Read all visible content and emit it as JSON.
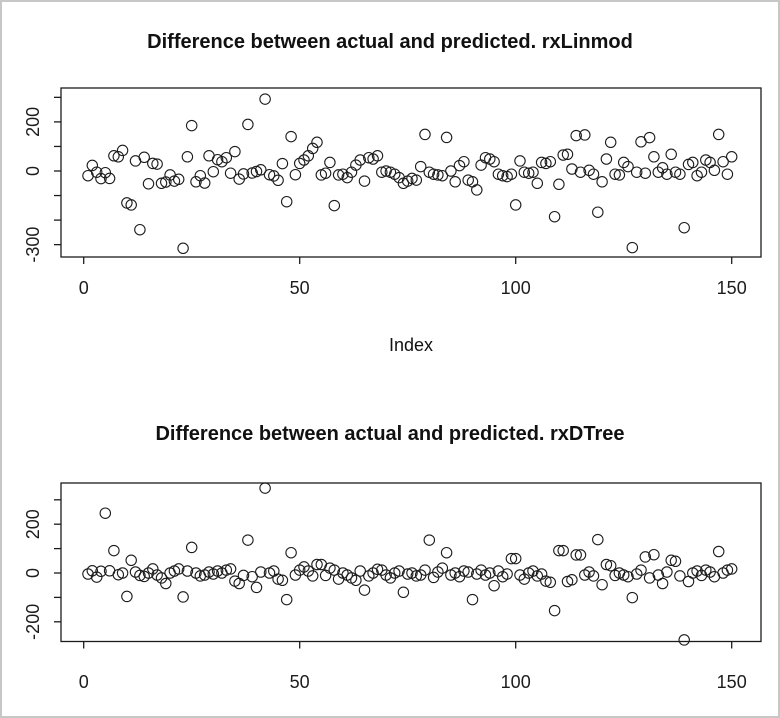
{
  "window": {
    "background": "#ffffff",
    "frame_border_color": "#c7c7c7",
    "ink_color": "#1c1c1c"
  },
  "chart_data": [
    {
      "type": "scatter",
      "title": "Difference between actual and predicted. rxLinmod",
      "xlabel": "Index",
      "ylabel": "",
      "marker": "open-circle",
      "grid": false,
      "x_description": "observation index 1..150, one point per observation",
      "x_ticks": [
        0,
        50,
        100,
        150
      ],
      "y_ticks": [
        300,
        200,
        100,
        0,
        -100,
        -200,
        -300
      ],
      "y_labeled_ticks": [
        200,
        0,
        -300
      ],
      "xlim": [
        -5,
        157
      ],
      "ylim": [
        -349,
        338
      ],
      "values": [
        -19,
        23,
        -5,
        -31,
        -7,
        -30,
        62,
        58,
        84,
        -130,
        -138,
        41,
        -239,
        56,
        -52,
        31,
        28,
        -50,
        -45,
        -16,
        -41,
        -34,
        -315,
        58,
        185,
        -44,
        -19,
        -49,
        62,
        -3,
        46,
        38,
        54,
        -9,
        79,
        -33,
        -12,
        190,
        -8,
        -2,
        5,
        293,
        -15,
        -20,
        -38,
        30,
        -125,
        140,
        -15,
        31,
        45,
        62,
        92,
        117,
        -16,
        -9,
        35,
        -141,
        -16,
        -13,
        -27,
        -5,
        24,
        45,
        -41,
        54,
        49,
        62,
        -5,
        0,
        -5,
        -13,
        -27,
        -50,
        -41,
        -30,
        -37,
        18,
        149,
        -5,
        -13,
        -16,
        -19,
        137,
        0,
        -44,
        22,
        38,
        -37,
        -44,
        -77,
        24,
        54,
        49,
        38,
        -13,
        -19,
        -23,
        -13,
        -138,
        41,
        -5,
        -9,
        -5,
        -50,
        35,
        31,
        38,
        -186,
        -54,
        65,
        68,
        8,
        144,
        -5,
        147,
        3,
        -13,
        -168,
        -44,
        49,
        117,
        -13,
        -16,
        35,
        18,
        -312,
        -5,
        119,
        -9,
        136,
        58,
        -5,
        13,
        -13,
        68,
        -5,
        -13,
        -231,
        27,
        35,
        -19,
        -5,
        45,
        35,
        3,
        149,
        38,
        -13,
        58
      ]
    },
    {
      "type": "scatter",
      "title": "Difference between actual and predicted. rxDTree",
      "xlabel": "",
      "ylabel": "",
      "marker": "open-circle",
      "grid": false,
      "x_description": "observation index 1..150, one point per observation",
      "x_ticks": [
        0,
        50,
        100,
        150
      ],
      "y_ticks": [
        300,
        200,
        100,
        0,
        -100,
        -200
      ],
      "y_labeled_ticks": [
        200,
        0,
        -200
      ],
      "xlim": [
        -5,
        157
      ],
      "ylim": [
        -280,
        369
      ],
      "values": [
        -4,
        9,
        -17,
        7,
        245,
        9,
        92,
        -7,
        0,
        -96,
        52,
        4,
        -10,
        -14,
        0,
        17,
        -8,
        -20,
        -43,
        0,
        8,
        17,
        -98,
        8,
        105,
        0,
        -12,
        -8,
        4,
        -4,
        8,
        0,
        12,
        17,
        -33,
        -43,
        -10,
        135,
        -15,
        -59,
        4,
        348,
        0,
        8,
        -25,
        -30,
        -109,
        83,
        -8,
        12,
        25,
        8,
        -12,
        35,
        35,
        -10,
        20,
        12,
        -25,
        0,
        -8,
        -20,
        -30,
        8,
        -70,
        -12,
        0,
        15,
        12,
        -8,
        -20,
        0,
        8,
        -79,
        -4,
        0,
        -12,
        -8,
        12,
        135,
        -18,
        4,
        20,
        83,
        -8,
        0,
        -15,
        8,
        4,
        -109,
        -4,
        12,
        -8,
        0,
        -52,
        8,
        -15,
        -4,
        59,
        59,
        -8,
        -25,
        0,
        8,
        -12,
        -4,
        -33,
        -38,
        -154,
        92,
        92,
        -35,
        -28,
        74,
        74,
        -8,
        4,
        -12,
        137,
        -48,
        35,
        30,
        -10,
        0,
        -8,
        -15,
        -101,
        -4,
        12,
        66,
        -20,
        75,
        -8,
        -43,
        4,
        52,
        48,
        -12,
        -274,
        -35,
        0,
        8,
        -10,
        12,
        4,
        -15,
        88,
        0,
        12,
        17
      ]
    }
  ]
}
